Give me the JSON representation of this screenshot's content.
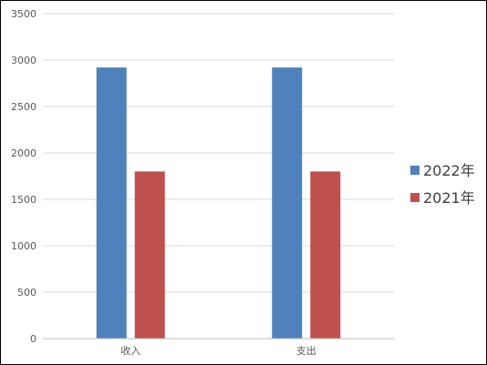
{
  "chart_data": {
    "type": "bar",
    "title": "",
    "xlabel": "",
    "ylabel": "",
    "categories": [
      "收入",
      "支出"
    ],
    "series": [
      {
        "name": "2022年",
        "values": [
          2920,
          2920
        ],
        "color": "#4f81bd"
      },
      {
        "name": "2021年",
        "values": [
          1800,
          1800
        ],
        "color": "#c0504d"
      }
    ],
    "ylim": [
      0,
      3500
    ],
    "yticks": [
      "0",
      "500",
      "1000",
      "1500",
      "2000",
      "2500",
      "3000",
      "3500"
    ],
    "grid": true,
    "legend_position": "right"
  }
}
